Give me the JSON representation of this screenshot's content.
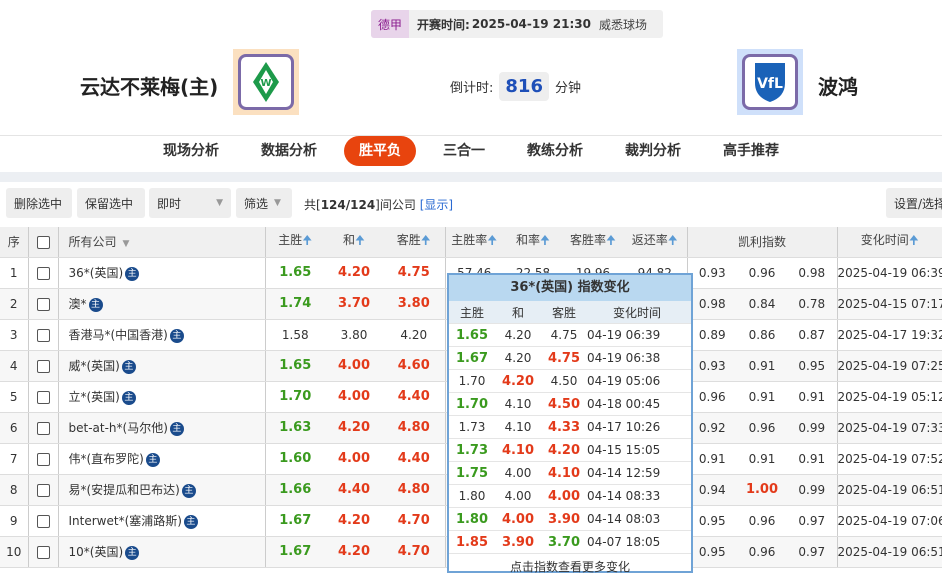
{
  "match": {
    "league": "德甲",
    "start_label": "开赛时间:",
    "start_time": "2025-04-19 21:30",
    "venue": "威悉球场",
    "home": "云达不莱梅(主)",
    "away": "波鸿",
    "countdown_label": "倒计时:",
    "countdown_value": "816",
    "countdown_unit": "分钟"
  },
  "nav": [
    "现场分析",
    "数据分析",
    "胜平负",
    "三合一",
    "教练分析",
    "裁判分析",
    "高手推荐"
  ],
  "nav_active": 2,
  "toolbar": {
    "delete": "删除选中",
    "keep": "保留选中",
    "mode": "即时",
    "filter": "筛选",
    "count_prefix": "共[",
    "count": "124/124",
    "count_suffix": "]间公司",
    "show": "[显示]",
    "settings": "设置/选择"
  },
  "headers": {
    "idx": "序",
    "company": "所有公司",
    "home": "主胜",
    "draw": "和",
    "away": "客胜",
    "home_rate": "主胜率",
    "draw_rate": "和率",
    "away_rate": "客胜率",
    "return": "返还率",
    "kelly": "凯利指数",
    "time": "变化时间"
  },
  "colors": {
    "up": "#3a9a1e",
    "down": "#e33a1a",
    "accent": "#e8440e"
  },
  "rows": [
    {
      "i": "1",
      "name": "36*(英国)",
      "h": "1.65",
      "d": "4.20",
      "a": "4.75",
      "c": [
        "g",
        "r",
        "r"
      ],
      "hr": "57.46",
      "dr": "22.58",
      "ar": "19.96",
      "ret": "94.82",
      "k": [
        "0.93",
        "0.96",
        "0.98"
      ],
      "t": "2025-04-19 06:39"
    },
    {
      "i": "2",
      "name": "澳*",
      "h": "1.74",
      "d": "3.70",
      "a": "3.80",
      "c": [
        "g",
        "r",
        "r"
      ],
      "k": [
        "0.98",
        "0.84",
        "0.78"
      ],
      "t": "2025-04-15 07:17"
    },
    {
      "i": "3",
      "name": "香港马*(中国香港)",
      "h": "1.58",
      "d": "3.80",
      "a": "4.20",
      "c": [
        "n",
        "n",
        "n"
      ],
      "k": [
        "0.89",
        "0.86",
        "0.87"
      ],
      "t": "2025-04-17 19:32"
    },
    {
      "i": "4",
      "name": "威*(英国)",
      "h": "1.65",
      "d": "4.00",
      "a": "4.60",
      "c": [
        "g",
        "r",
        "r"
      ],
      "k": [
        "0.93",
        "0.91",
        "0.95"
      ],
      "t": "2025-04-19 07:25"
    },
    {
      "i": "5",
      "name": "立*(英国)",
      "h": "1.70",
      "d": "4.00",
      "a": "4.40",
      "c": [
        "g",
        "r",
        "r"
      ],
      "k": [
        "0.96",
        "0.91",
        "0.91"
      ],
      "t": "2025-04-19 05:12"
    },
    {
      "i": "6",
      "name": "bet-at-h*(马尔他)",
      "h": "1.63",
      "d": "4.20",
      "a": "4.80",
      "c": [
        "g",
        "r",
        "r"
      ],
      "k": [
        "0.92",
        "0.96",
        "0.99"
      ],
      "t": "2025-04-19 07:33"
    },
    {
      "i": "7",
      "name": "伟*(直布罗陀)",
      "h": "1.60",
      "d": "4.00",
      "a": "4.40",
      "c": [
        "g",
        "r",
        "r"
      ],
      "k": [
        "0.91",
        "0.91",
        "0.91"
      ],
      "t": "2025-04-19 07:52"
    },
    {
      "i": "8",
      "name": "易*(安提瓜和巴布达)",
      "h": "1.66",
      "d": "4.40",
      "a": "4.80",
      "c": [
        "g",
        "r",
        "r"
      ],
      "k": [
        "0.94",
        "1.00",
        "0.99"
      ],
      "t": "2025-04-19 06:51"
    },
    {
      "i": "9",
      "name": "Interwet*(塞浦路斯)",
      "h": "1.67",
      "d": "4.20",
      "a": "4.70",
      "c": [
        "g",
        "r",
        "r"
      ],
      "k": [
        "0.95",
        "0.96",
        "0.97"
      ],
      "t": "2025-04-19 07:06"
    },
    {
      "i": "10",
      "name": "10*(英国)",
      "h": "1.67",
      "d": "4.20",
      "a": "4.70",
      "c": [
        "g",
        "r",
        "r"
      ],
      "k": [
        "0.95",
        "0.96",
        "0.97"
      ],
      "t": "2025-04-19 06:51"
    }
  ],
  "badge": "主",
  "popup": {
    "title": "36*(英国) 指数变化",
    "headers": [
      "主胜",
      "和",
      "客胜",
      "变化时间"
    ],
    "rows": [
      [
        "1.65",
        "4.20",
        "4.75",
        "04-19 06:39",
        "g",
        "n",
        "n"
      ],
      [
        "1.67",
        "4.20",
        "4.75",
        "04-19 06:38",
        "g",
        "n",
        "r"
      ],
      [
        "1.70",
        "4.20",
        "4.50",
        "04-19 05:06",
        "n",
        "r",
        "n"
      ],
      [
        "1.70",
        "4.10",
        "4.50",
        "04-18 00:45",
        "g",
        "n",
        "r"
      ],
      [
        "1.73",
        "4.10",
        "4.33",
        "04-17 10:26",
        "n",
        "n",
        "r"
      ],
      [
        "1.73",
        "4.10",
        "4.20",
        "04-15 15:05",
        "g",
        "r",
        "r"
      ],
      [
        "1.75",
        "4.00",
        "4.10",
        "04-14 12:59",
        "g",
        "n",
        "r"
      ],
      [
        "1.80",
        "4.00",
        "4.00",
        "04-14 08:33",
        "n",
        "n",
        "r"
      ],
      [
        "1.80",
        "4.00",
        "3.90",
        "04-14 08:03",
        "g",
        "r",
        "r"
      ],
      [
        "1.85",
        "3.90",
        "3.70",
        "04-07 18:05",
        "r",
        "r",
        "g"
      ]
    ],
    "footer": "点击指数查看更多变化"
  }
}
